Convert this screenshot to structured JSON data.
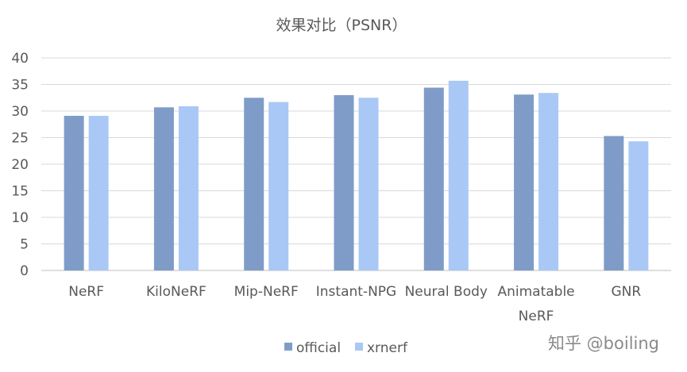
{
  "chart_data": {
    "type": "bar",
    "title": "效果对比（PSNR）",
    "categories": [
      [
        "NeRF"
      ],
      [
        "KiloNeRF"
      ],
      [
        "Mip-NeRF"
      ],
      [
        "Instant-NPG"
      ],
      [
        "Neural Body"
      ],
      [
        "Animatable",
        "NeRF"
      ],
      [
        "GNR"
      ]
    ],
    "series": [
      {
        "name": "official",
        "color": "#7f9cc8",
        "values": [
          29.1,
          30.7,
          32.5,
          33.0,
          34.4,
          33.1,
          25.3
        ]
      },
      {
        "name": "xrnerf",
        "color": "#a9c8f5",
        "values": [
          29.1,
          30.9,
          31.7,
          32.5,
          35.7,
          33.4,
          24.3
        ]
      }
    ],
    "yticks": [
      0,
      5,
      10,
      15,
      20,
      25,
      30,
      35,
      40
    ],
    "ylim": [
      0,
      40
    ],
    "grid": true,
    "legend": "bottom"
  },
  "watermark": "知乎 @boiling"
}
